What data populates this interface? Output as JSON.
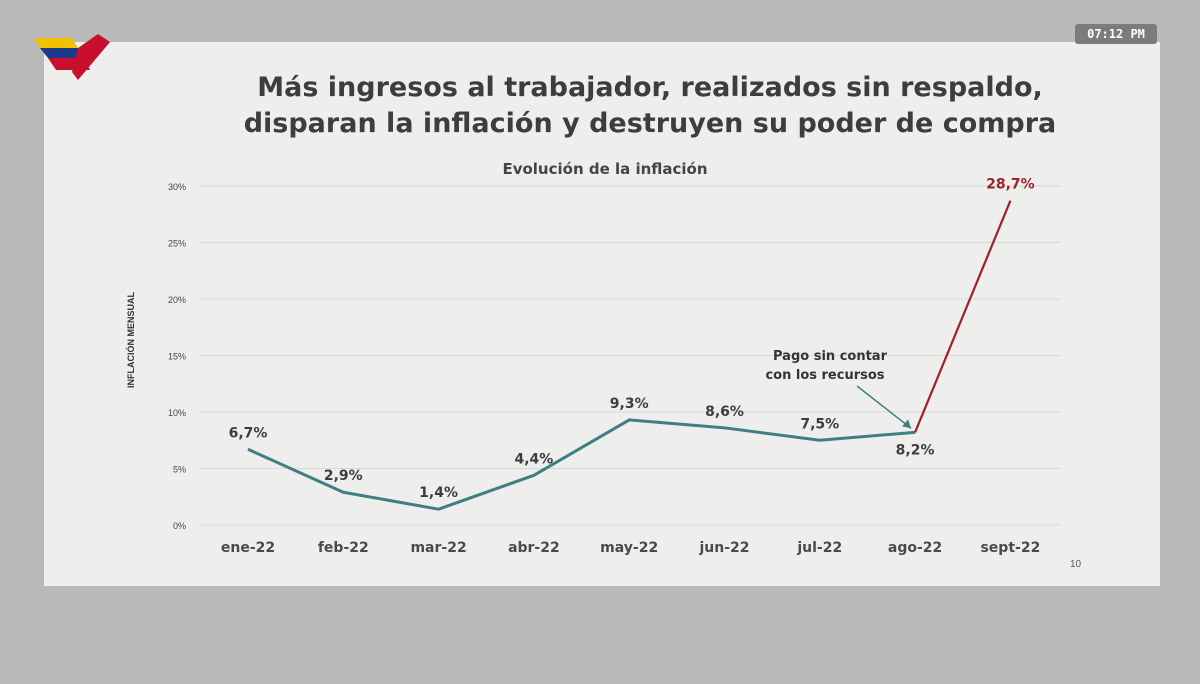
{
  "overlay": {
    "clock": "07:12  PM"
  },
  "slide": {
    "title_line1": "Más ingresos al trabajador, realizados sin respaldo,",
    "title_line2": "disparan la inflación y destruyen su poder de compra",
    "page_number": "10"
  },
  "colors": {
    "line": "#3f7f82",
    "highlight": "#a01f28",
    "grid": "#d9d9d7",
    "text": "#3d3d3d"
  },
  "chart_data": {
    "type": "line",
    "title": "Evolución de la inflación",
    "xlabel": "",
    "ylabel": "INFLACIÓN MENSUAL",
    "categories": [
      "ene-22",
      "feb-22",
      "mar-22",
      "abr-22",
      "may-22",
      "jun-22",
      "jul-22",
      "ago-22",
      "sept-22"
    ],
    "series": [
      {
        "values": [
          6.7,
          2.9,
          1.4,
          4.4,
          9.3,
          8.6,
          7.5,
          8.2,
          28.7
        ]
      }
    ],
    "data_labels": [
      "6,7%",
      "2,9%",
      "1,4%",
      "4,4%",
      "9,3%",
      "8,6%",
      "7,5%",
      "8,2%",
      "28,7%"
    ],
    "ylim": [
      0,
      30
    ],
    "yticks": [
      0,
      5,
      10,
      15,
      20,
      25,
      30
    ],
    "ytick_labels": [
      "0%",
      "5%",
      "10%",
      "15%",
      "20%",
      "25%",
      "30%"
    ],
    "grid": true,
    "highlight_last_segment": true,
    "annotation": {
      "line1": "Pago sin contar",
      "line2": "con los recursos",
      "points_to": "ago-22"
    }
  }
}
